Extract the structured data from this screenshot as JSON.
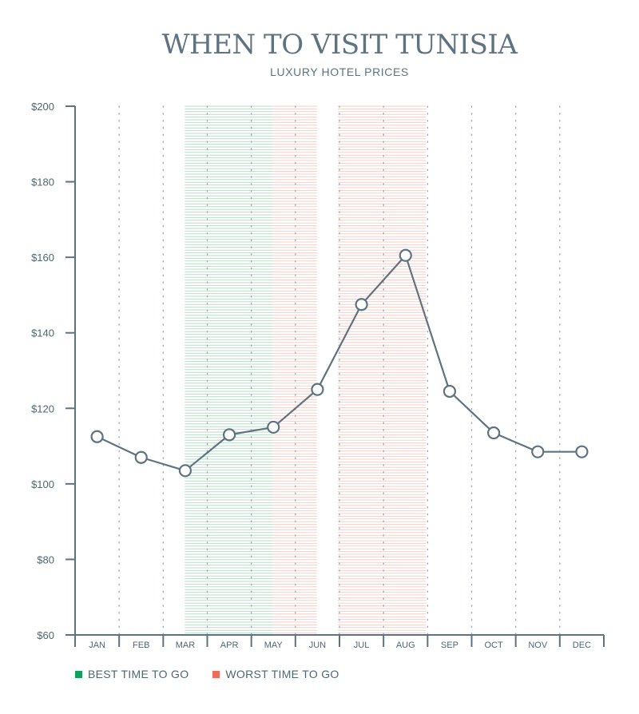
{
  "chart_data": {
    "type": "line",
    "title": "WHEN TO VISIT TUNISIA",
    "subtitle": "LUXURY HOTEL PRICES",
    "categories": [
      "JAN",
      "FEB",
      "MAR",
      "APR",
      "MAY",
      "JUN",
      "JUL",
      "AUG",
      "SEP",
      "OCT",
      "NOV",
      "DEC"
    ],
    "values": [
      112.5,
      107,
      103.5,
      113,
      115,
      125,
      147.5,
      160.5,
      124.5,
      113.5,
      108.5,
      108.5
    ],
    "ylim": [
      60,
      200
    ],
    "yticks": [
      200,
      180,
      160,
      140,
      120,
      100,
      80,
      60
    ],
    "ytick_labels": [
      "$200",
      "$180",
      "$160",
      "$140",
      "$120",
      "$100",
      "$80",
      "$60"
    ],
    "bands": [
      {
        "type": "best",
        "from_month": "MAR",
        "to_month": "MAY",
        "color": "#2e9e5b"
      },
      {
        "type": "worst",
        "from_month": "MAY",
        "to_month": "JUN",
        "color": "#e8735f"
      },
      {
        "type": "worst",
        "from_month": "JUL",
        "to_month": "AUG",
        "color": "#e8735f"
      }
    ],
    "legend": {
      "placement": "bottom-left",
      "items": [
        {
          "label": "BEST TIME TO GO",
          "color": "#14a05a"
        },
        {
          "label": "WORST TIME TO GO",
          "color": "#ee6b5c"
        }
      ]
    },
    "line_color": "#5e7380",
    "axis_color": "#5e7380"
  }
}
